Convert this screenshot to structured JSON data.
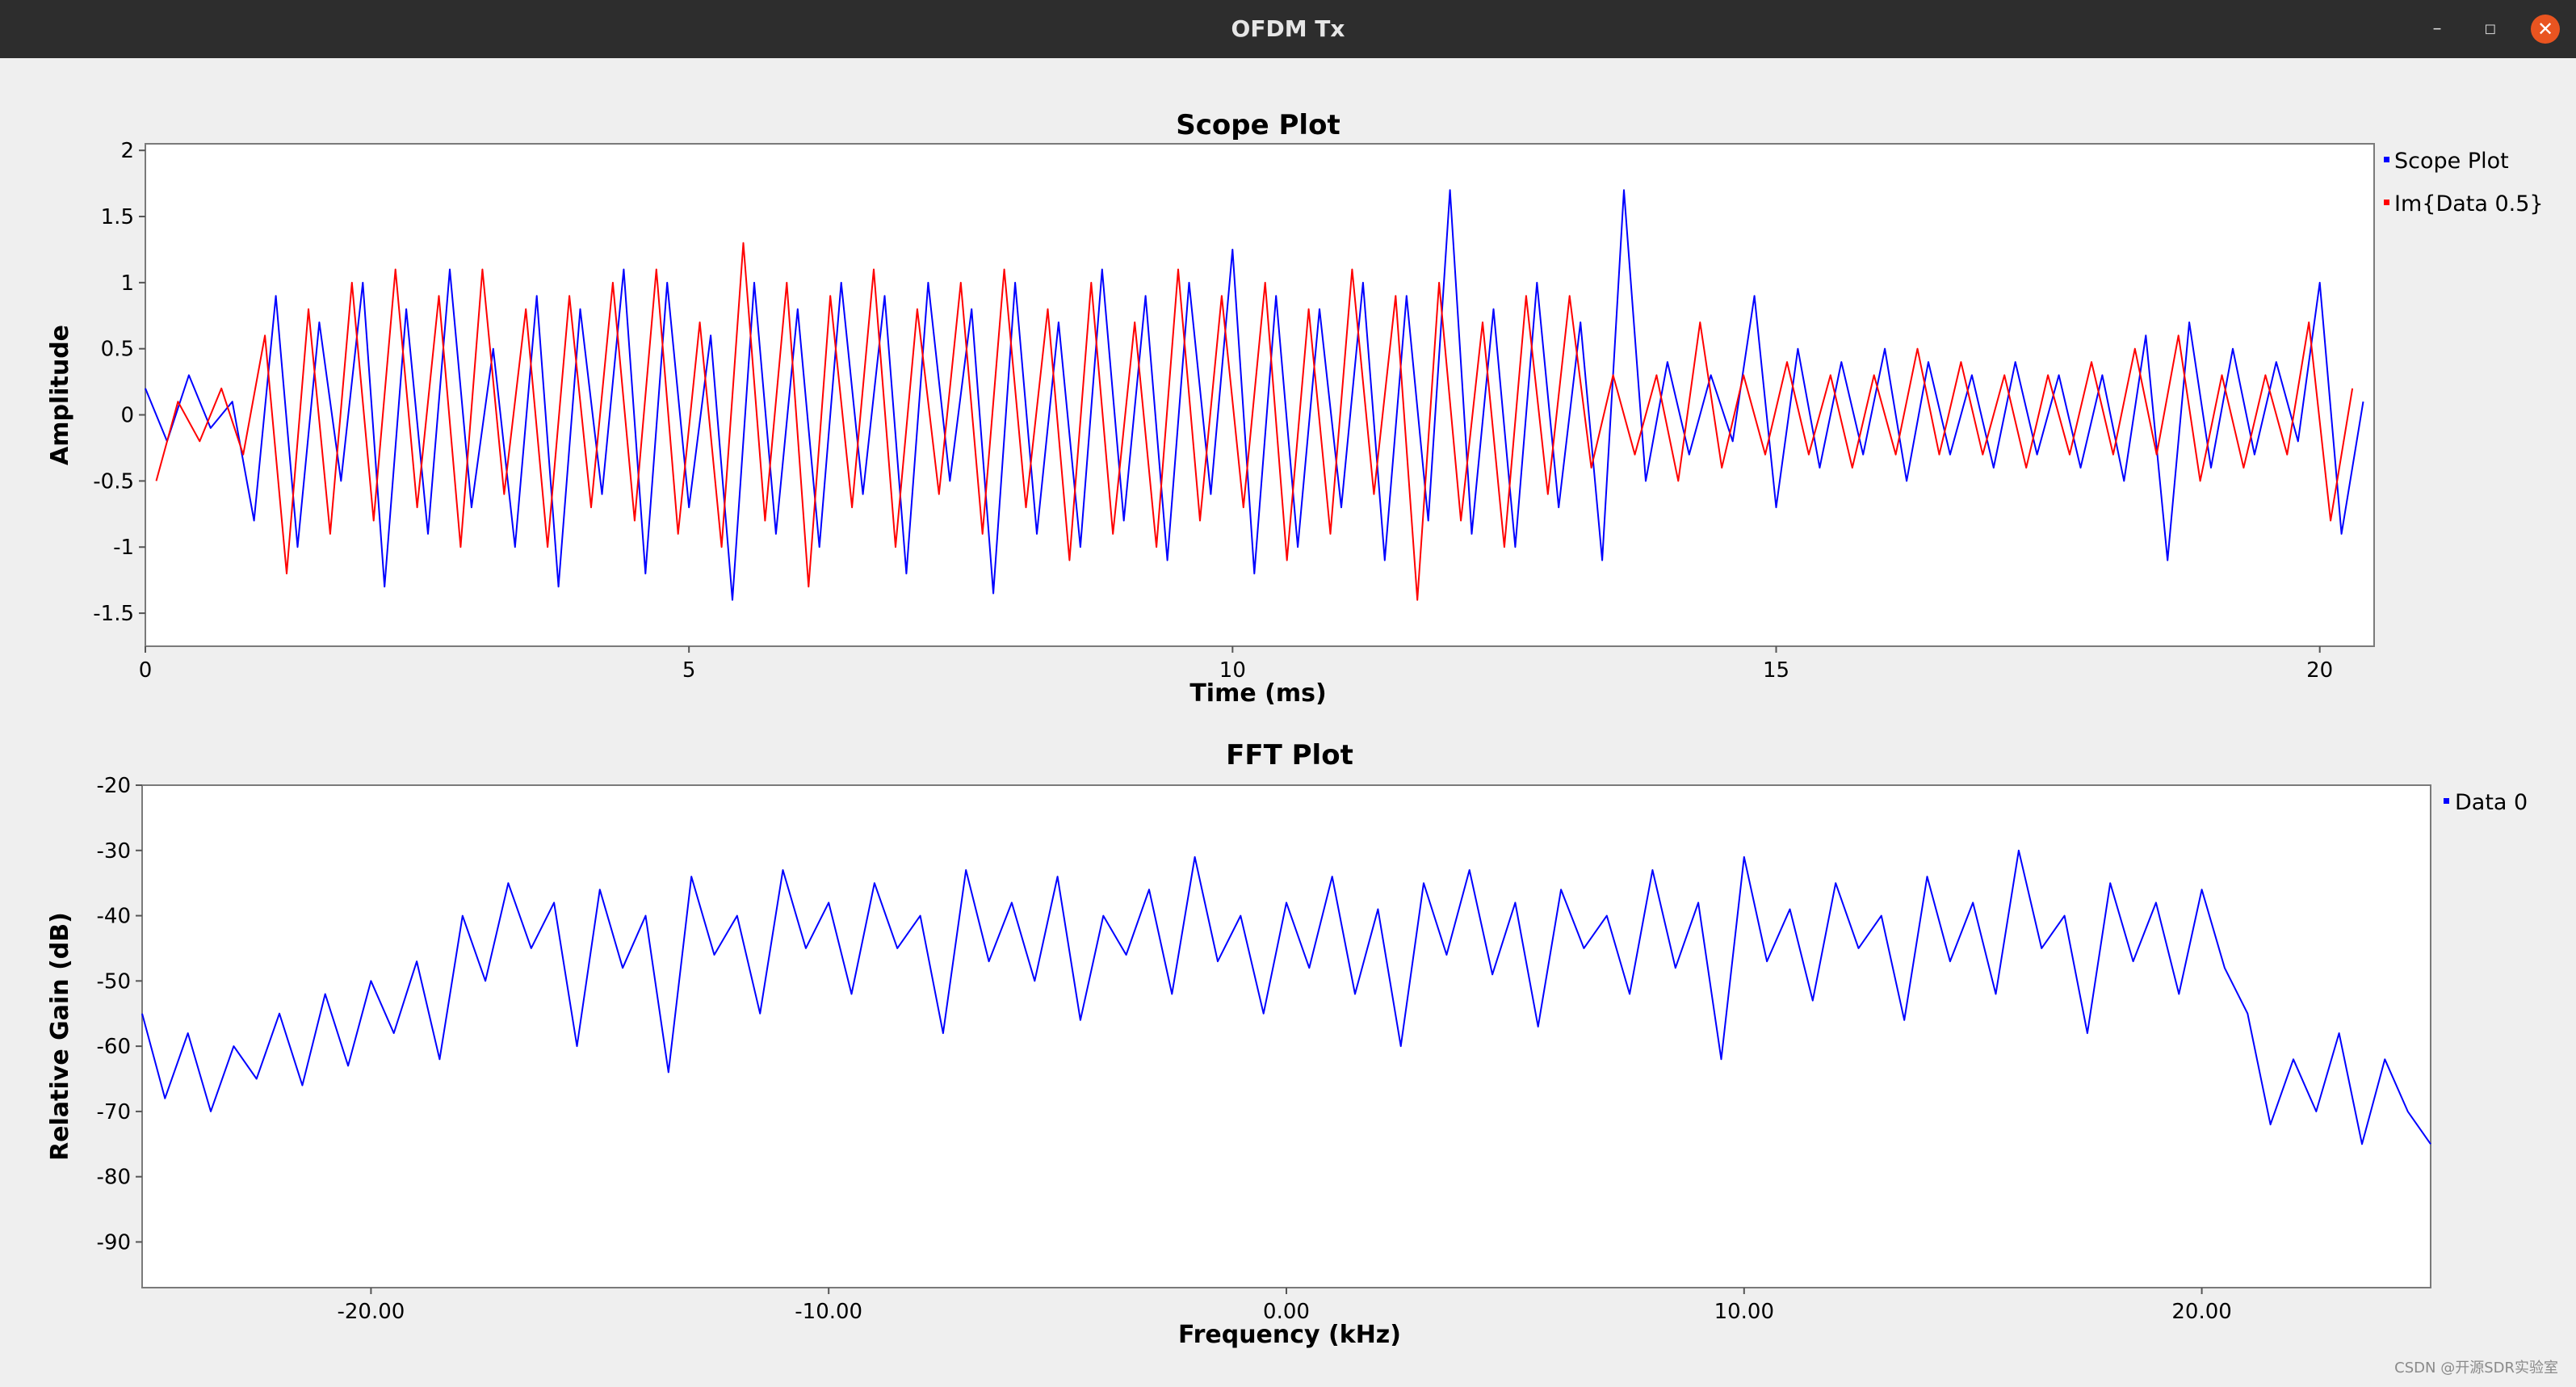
{
  "window": {
    "title": "OFDM Tx",
    "minimize_icon": "minimize-icon",
    "maximize_icon": "maximize-icon",
    "close_icon": "close-icon",
    "minimize_glyph": "–",
    "maximize_glyph": "◻",
    "close_glyph": "✕"
  },
  "watermark": "CSDN @开源SDR实验室",
  "chart_data": [
    {
      "type": "line",
      "title": "Scope Plot",
      "xlabel": "Time (ms)",
      "ylabel": "Amplitude",
      "xlim": [
        0,
        20.5
      ],
      "ylim": [
        -1.75,
        2.05
      ],
      "xticks": [
        0,
        5,
        10,
        15,
        20
      ],
      "xtick_labels": [
        "0",
        "5",
        "10",
        "15",
        "20"
      ],
      "yticks": [
        2,
        1.5,
        1,
        0.5,
        0,
        -0.5,
        -1,
        -1.5
      ],
      "ytick_labels": [
        "2",
        "1.5",
        "1",
        "0.5",
        "0",
        "-0.5",
        "-1",
        "-1.5"
      ],
      "legend_position": "right",
      "series": [
        {
          "name": "Scope Plot",
          "color": "#0000ff",
          "x": [
            0,
            0.2,
            0.4,
            0.6,
            0.8,
            1.0,
            1.2,
            1.4,
            1.6,
            1.8,
            2.0,
            2.2,
            2.4,
            2.6,
            2.8,
            3.0,
            3.2,
            3.4,
            3.6,
            3.8,
            4.0,
            4.2,
            4.4,
            4.6,
            4.8,
            5.0,
            5.2,
            5.4,
            5.6,
            5.8,
            6.0,
            6.2,
            6.4,
            6.6,
            6.8,
            7.0,
            7.2,
            7.4,
            7.6,
            7.8,
            8.0,
            8.2,
            8.4,
            8.6,
            8.8,
            9.0,
            9.2,
            9.4,
            9.6,
            9.8,
            10.0,
            10.2,
            10.4,
            10.6,
            10.8,
            11.0,
            11.2,
            11.4,
            11.6,
            11.8,
            12.0,
            12.2,
            12.4,
            12.6,
            12.8,
            13.0,
            13.2,
            13.4,
            13.6,
            13.8,
            14.0,
            14.2,
            14.4,
            14.6,
            14.8,
            15.0,
            15.2,
            15.4,
            15.6,
            15.8,
            16.0,
            16.2,
            16.4,
            16.6,
            16.8,
            17.0,
            17.2,
            17.4,
            17.6,
            17.8,
            18.0,
            18.2,
            18.4,
            18.6,
            18.8,
            19.0,
            19.2,
            19.4,
            19.6,
            19.8,
            20.0,
            20.2,
            20.4
          ],
          "values": [
            0.2,
            -0.2,
            0.3,
            -0.1,
            0.1,
            -0.8,
            0.9,
            -1.0,
            0.7,
            -0.5,
            1.0,
            -1.3,
            0.8,
            -0.9,
            1.1,
            -0.7,
            0.5,
            -1.0,
            0.9,
            -1.3,
            0.8,
            -0.6,
            1.1,
            -1.2,
            1.0,
            -0.7,
            0.6,
            -1.4,
            1.0,
            -0.9,
            0.8,
            -1.0,
            1.0,
            -0.6,
            0.9,
            -1.2,
            1.0,
            -0.5,
            0.8,
            -1.35,
            1.0,
            -0.9,
            0.7,
            -1.0,
            1.1,
            -0.8,
            0.9,
            -1.1,
            1.0,
            -0.6,
            1.25,
            -1.2,
            0.9,
            -1.0,
            0.8,
            -0.7,
            1.0,
            -1.1,
            0.9,
            -0.8,
            1.7,
            -0.9,
            0.8,
            -1.0,
            1.0,
            -0.7,
            0.7,
            -1.1,
            1.7,
            -0.5,
            0.4,
            -0.3,
            0.3,
            -0.2,
            0.9,
            -0.7,
            0.5,
            -0.4,
            0.4,
            -0.3,
            0.5,
            -0.5,
            0.4,
            -0.3,
            0.3,
            -0.4,
            0.4,
            -0.3,
            0.3,
            -0.4,
            0.3,
            -0.5,
            0.6,
            -1.1,
            0.7,
            -0.4,
            0.5,
            -0.3,
            0.4,
            -0.2,
            1.0,
            -0.9,
            0.1
          ]
        },
        {
          "name": "Im{Data 0.5}",
          "color": "#ff0000",
          "x": [
            0.1,
            0.3,
            0.5,
            0.7,
            0.9,
            1.1,
            1.3,
            1.5,
            1.7,
            1.9,
            2.1,
            2.3,
            2.5,
            2.7,
            2.9,
            3.1,
            3.3,
            3.5,
            3.7,
            3.9,
            4.1,
            4.3,
            4.5,
            4.7,
            4.9,
            5.1,
            5.3,
            5.5,
            5.7,
            5.9,
            6.1,
            6.3,
            6.5,
            6.7,
            6.9,
            7.1,
            7.3,
            7.5,
            7.7,
            7.9,
            8.1,
            8.3,
            8.5,
            8.7,
            8.9,
            9.1,
            9.3,
            9.5,
            9.7,
            9.9,
            10.1,
            10.3,
            10.5,
            10.7,
            10.9,
            11.1,
            11.3,
            11.5,
            11.7,
            11.9,
            12.1,
            12.3,
            12.5,
            12.7,
            12.9,
            13.1,
            13.3,
            13.5,
            13.7,
            13.9,
            14.1,
            14.3,
            14.5,
            14.7,
            14.9,
            15.1,
            15.3,
            15.5,
            15.7,
            15.9,
            16.1,
            16.3,
            16.5,
            16.7,
            16.9,
            17.1,
            17.3,
            17.5,
            17.7,
            17.9,
            18.1,
            18.3,
            18.5,
            18.7,
            18.9,
            19.1,
            19.3,
            19.5,
            19.7,
            19.9,
            20.1,
            20.3
          ],
          "values": [
            -0.5,
            0.1,
            -0.2,
            0.2,
            -0.3,
            0.6,
            -1.2,
            0.8,
            -0.9,
            1.0,
            -0.8,
            1.1,
            -0.7,
            0.9,
            -1.0,
            1.1,
            -0.6,
            0.8,
            -1.0,
            0.9,
            -0.7,
            1.0,
            -0.8,
            1.1,
            -0.9,
            0.7,
            -1.0,
            1.3,
            -0.8,
            1.0,
            -1.3,
            0.9,
            -0.7,
            1.1,
            -1.0,
            0.8,
            -0.6,
            1.0,
            -0.9,
            1.1,
            -0.7,
            0.8,
            -1.1,
            1.0,
            -0.9,
            0.7,
            -1.0,
            1.1,
            -0.8,
            0.9,
            -0.7,
            1.0,
            -1.1,
            0.8,
            -0.9,
            1.1,
            -0.6,
            0.9,
            -1.4,
            1.0,
            -0.8,
            0.7,
            -1.0,
            0.9,
            -0.6,
            0.9,
            -0.4,
            0.3,
            -0.3,
            0.3,
            -0.5,
            0.7,
            -0.4,
            0.3,
            -0.3,
            0.4,
            -0.3,
            0.3,
            -0.4,
            0.3,
            -0.3,
            0.5,
            -0.3,
            0.4,
            -0.3,
            0.3,
            -0.4,
            0.3,
            -0.3,
            0.4,
            -0.3,
            0.5,
            -0.3,
            0.6,
            -0.5,
            0.3,
            -0.4,
            0.3,
            -0.3,
            0.7,
            -0.8,
            0.2
          ]
        }
      ]
    },
    {
      "type": "line",
      "title": "FFT Plot",
      "xlabel": "Frequency (kHz)",
      "ylabel": "Relative Gain (dB)",
      "xlim": [
        -25,
        25
      ],
      "ylim": [
        -97,
        -20
      ],
      "xticks": [
        -20,
        -10,
        0,
        10,
        20
      ],
      "xtick_labels": [
        "-20.00",
        "-10.00",
        "0.00",
        "10.00",
        "20.00"
      ],
      "yticks": [
        -20,
        -30,
        -40,
        -50,
        -60,
        -70,
        -80,
        -90
      ],
      "ytick_labels": [
        "-20",
        "-30",
        "-40",
        "-50",
        "-60",
        "-70",
        "-80",
        "-90"
      ],
      "legend_position": "right",
      "series": [
        {
          "name": "Data 0",
          "color": "#0000ff",
          "x": [
            -25,
            -24.5,
            -24,
            -23.5,
            -23,
            -22.5,
            -22,
            -21.5,
            -21,
            -20.5,
            -20,
            -19.5,
            -19,
            -18.5,
            -18,
            -17.5,
            -17,
            -16.5,
            -16,
            -15.5,
            -15,
            -14.5,
            -14,
            -13.5,
            -13,
            -12.5,
            -12,
            -11.5,
            -11,
            -10.5,
            -10,
            -9.5,
            -9,
            -8.5,
            -8,
            -7.5,
            -7,
            -6.5,
            -6,
            -5.5,
            -5,
            -4.5,
            -4,
            -3.5,
            -3,
            -2.5,
            -2,
            -1.5,
            -1,
            -0.5,
            0,
            0.5,
            1,
            1.5,
            2,
            2.5,
            3,
            3.5,
            4,
            4.5,
            5,
            5.5,
            6,
            6.5,
            7,
            7.5,
            8,
            8.5,
            9,
            9.5,
            10,
            10.5,
            11,
            11.5,
            12,
            12.5,
            13,
            13.5,
            14,
            14.5,
            15,
            15.5,
            16,
            16.5,
            17,
            17.5,
            18,
            18.5,
            19,
            19.5,
            20,
            20.5,
            21,
            21.5,
            22,
            22.5,
            23,
            23.5,
            24,
            24.5,
            25
          ],
          "values": [
            -55,
            -68,
            -58,
            -70,
            -60,
            -65,
            -55,
            -66,
            -52,
            -63,
            -50,
            -58,
            -47,
            -62,
            -40,
            -50,
            -35,
            -45,
            -38,
            -60,
            -36,
            -48,
            -40,
            -64,
            -34,
            -46,
            -40,
            -55,
            -33,
            -45,
            -38,
            -52,
            -35,
            -45,
            -40,
            -58,
            -33,
            -47,
            -38,
            -50,
            -34,
            -56,
            -40,
            -46,
            -36,
            -52,
            -31,
            -47,
            -40,
            -55,
            -38,
            -48,
            -34,
            -52,
            -39,
            -60,
            -35,
            -46,
            -33,
            -49,
            -38,
            -57,
            -36,
            -45,
            -40,
            -52,
            -33,
            -48,
            -38,
            -62,
            -31,
            -47,
            -39,
            -53,
            -35,
            -45,
            -40,
            -56,
            -34,
            -47,
            -38,
            -52,
            -30,
            -45,
            -40,
            -58,
            -35,
            -47,
            -38,
            -52,
            -36,
            -48,
            -55,
            -72,
            -62,
            -70,
            -58,
            -75,
            -62,
            -70,
            -75
          ]
        }
      ]
    }
  ]
}
